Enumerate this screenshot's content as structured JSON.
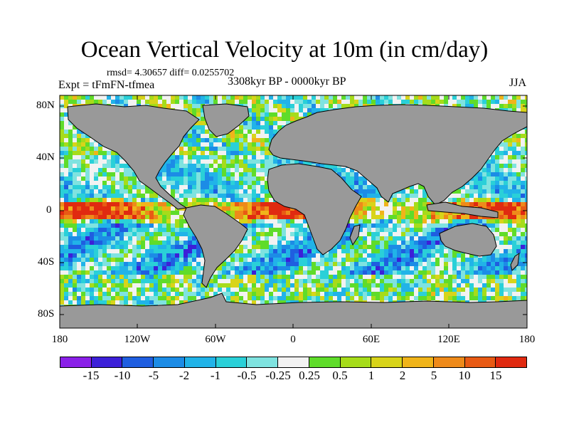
{
  "title": "Ocean Vertical Velocity at 10m (in cm/day)",
  "stats_line": "rmsd= 4.30657 diff= 0.0255702",
  "experiment_line": "Expt = tFmFN-tfmea",
  "period_line": "3308kyr BP - 0000kyr BP",
  "season": "JJA",
  "lat_labels": [
    "80N",
    "40N",
    "0",
    "40S",
    "80S"
  ],
  "lon_labels": [
    "180",
    "120W",
    "60W",
    "0",
    "60E",
    "120E",
    "180"
  ],
  "colorbar": {
    "labels": [
      "-15",
      "-10",
      "-5",
      "-2",
      "-1",
      "-0.5",
      "-0.25",
      "0.25",
      "0.5",
      "1",
      "2",
      "5",
      "10",
      "15"
    ],
    "colors": [
      "#8a20e8",
      "#3c20d8",
      "#1f5ee0",
      "#1c8ce6",
      "#21b3e8",
      "#2ad0d8",
      "#7fe3e0",
      "#f2f2f2",
      "#5fdc2a",
      "#a6dc1a",
      "#d8d41a",
      "#f0b41a",
      "#ee8a1a",
      "#e85a14",
      "#e02a10"
    ]
  },
  "map_colors": {
    "land": "#999999",
    "coast": "#000000"
  }
}
